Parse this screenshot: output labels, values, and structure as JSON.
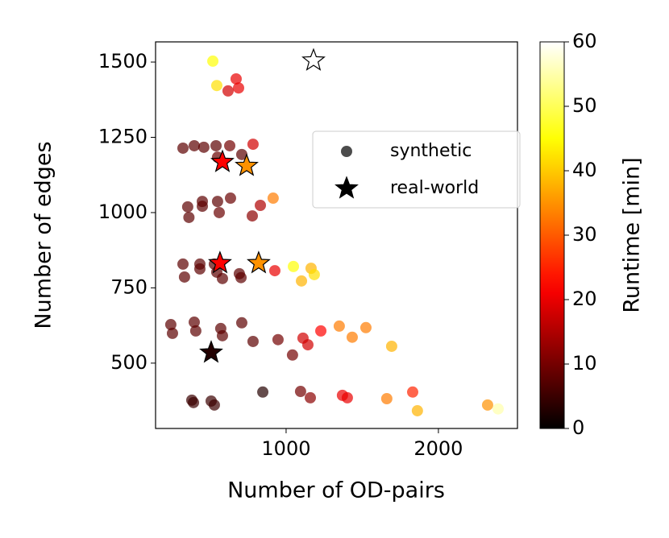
{
  "chart_data": {
    "type": "scatter",
    "x_label": "Number of OD-pairs",
    "y_label": "Number of edges",
    "xlim": [
      143,
      2519
    ],
    "xticks": [
      1000,
      2000
    ],
    "ylim": [
      283,
      1567
    ],
    "yticks": [
      500,
      750,
      1000,
      1250,
      1500
    ],
    "colormap": "hot",
    "clim": [
      0,
      60
    ],
    "colorbar_label": "Runtime [min]",
    "colorbar_ticks": [
      0,
      10,
      20,
      30,
      40,
      50,
      60
    ],
    "legend": "center right",
    "series": [
      {
        "name": "synthetic",
        "marker": "circle",
        "x": [
          519,
          545,
          672,
          688,
          619,
          323,
          397,
          460,
          540,
          630,
          783,
          550,
          709,
          354,
          450,
          450,
          550,
          635,
          362,
          561,
          778,
          831,
          915,
          323,
          434,
          434,
          529,
          582,
          545,
          693,
          704,
          926,
          1048,
          1101,
          1164,
          1185,
          333,
          243,
          254,
          397,
          407,
          571,
          582,
          709,
          783,
          947,
          1042,
          1111,
          1143,
          1228,
          1349,
          1434,
          1524,
          1693,
          381,
          392,
          508,
          529,
          847,
          1095,
          1159,
          1370,
          1402,
          1661,
          1831,
          1862,
          2323,
          2392
        ],
        "y": [
          1503,
          1422,
          1444,
          1414,
          1404,
          1214,
          1222,
          1217,
          1222,
          1222,
          1227,
          1184,
          1193,
          1019,
          1037,
          1021,
          1037,
          1048,
          984,
          1000,
          989,
          1024,
          1048,
          829,
          829,
          813,
          829,
          781,
          802,
          797,
          784,
          807,
          821,
          773,
          815,
          794,
          786,
          628,
          599,
          636,
          607,
          615,
          591,
          634,
          572,
          578,
          527,
          583,
          561,
          607,
          623,
          586,
          618,
          556,
          377,
          369,
          374,
          361,
          404,
          406,
          385,
          393,
          385,
          382,
          404,
          342,
          361,
          348
        ],
        "runtime": [
          45,
          42,
          20,
          20,
          18,
          8,
          8,
          8,
          8,
          10,
          18,
          9,
          8,
          8,
          8,
          8,
          8,
          9,
          8,
          9,
          12,
          15,
          33,
          8,
          8,
          8,
          8,
          8,
          8,
          8,
          8,
          20,
          45,
          38,
          38,
          42,
          8,
          8,
          8,
          8,
          8,
          8,
          8,
          8,
          8,
          10,
          10,
          18,
          18,
          22,
          33,
          33,
          33,
          38,
          5,
          5,
          5,
          5,
          3,
          10,
          12,
          20,
          20,
          33,
          25,
          38,
          35,
          55
        ]
      },
      {
        "name": "real-world",
        "marker": "star",
        "x": [
          1180,
          582,
          741,
          566,
          820,
          508
        ],
        "y": [
          1505,
          1168,
          1155,
          832,
          832,
          535
        ],
        "runtime": [
          60,
          22,
          35,
          22,
          35,
          3
        ]
      }
    ]
  }
}
